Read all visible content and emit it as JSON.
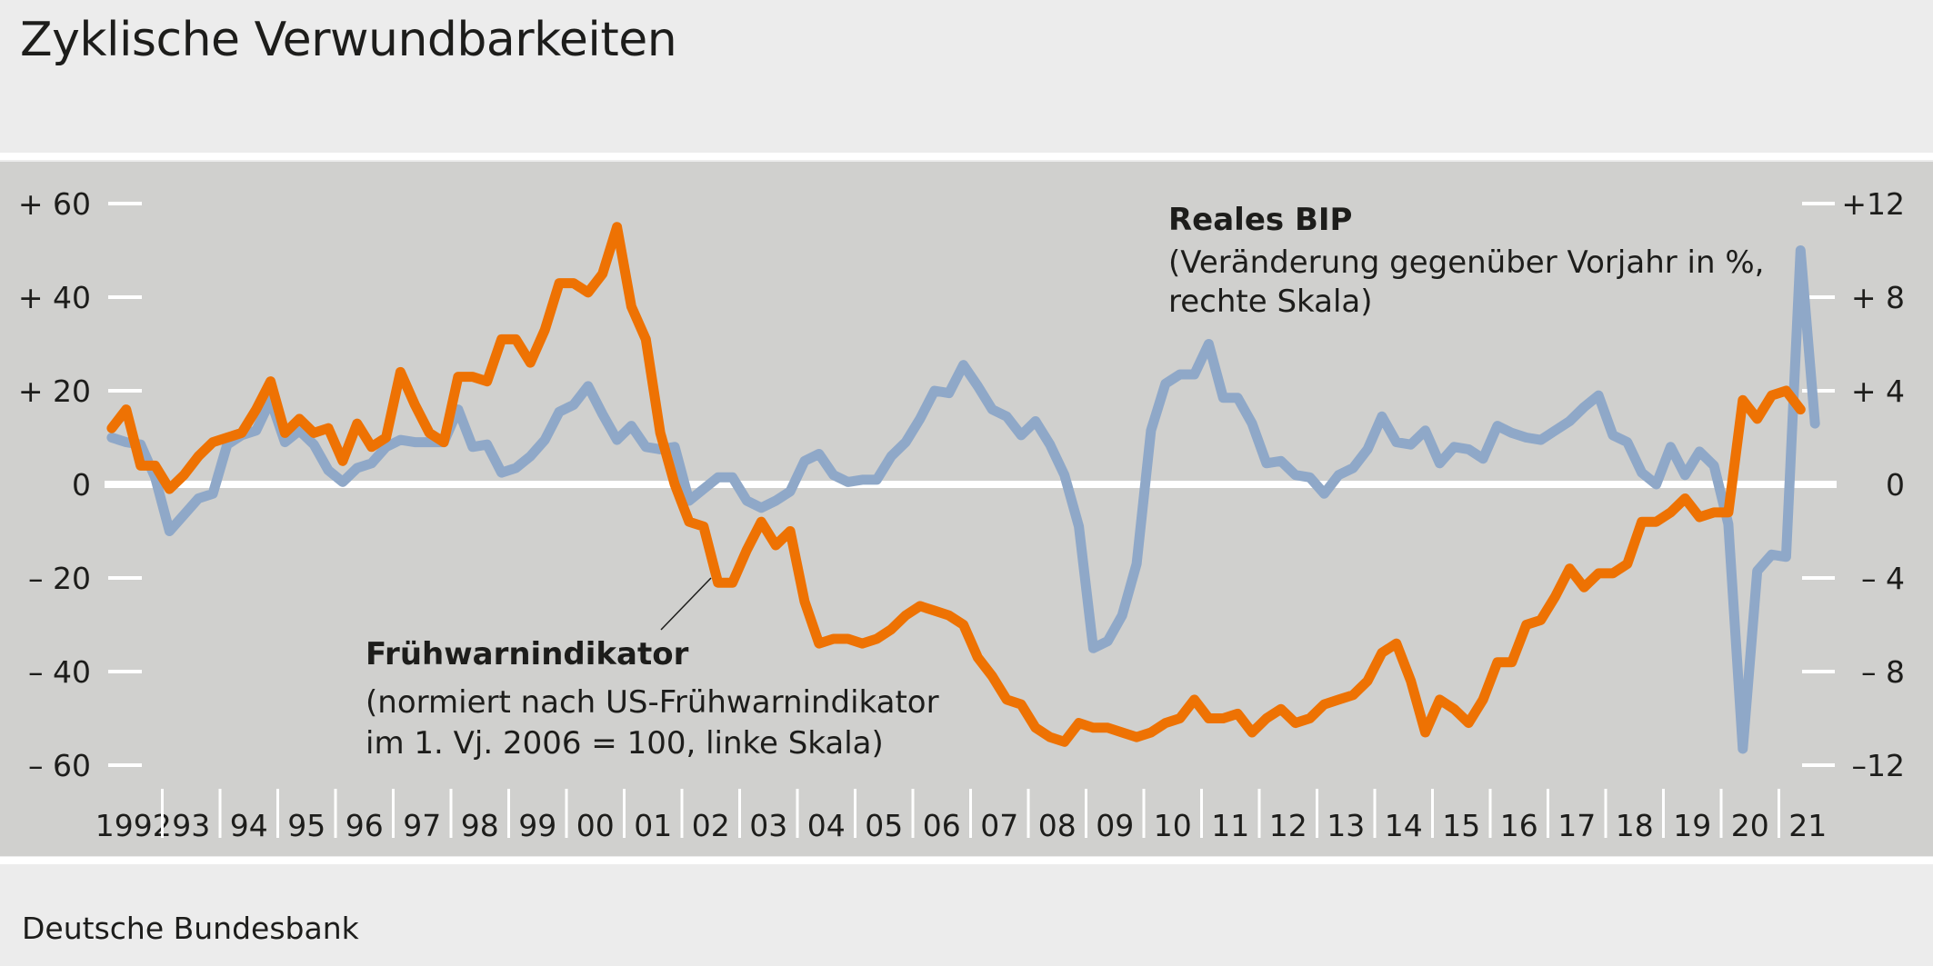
{
  "title": "Zyklische Verwundbarkeiten",
  "footer": "Deutsche Bundesbank",
  "colors": {
    "fruehwarn": "#ee7203",
    "bip": "#8fa8c8",
    "plot_bg": "#d0d0ce",
    "page_bg": "#ececec"
  },
  "chart_data": {
    "type": "line",
    "x_axis": {
      "start": "1992-Q1",
      "frequency": "quarterly",
      "tick_labels": [
        "1992",
        "93",
        "94",
        "95",
        "96",
        "97",
        "98",
        "99",
        "00",
        "01",
        "02",
        "03",
        "04",
        "05",
        "06",
        "07",
        "08",
        "09",
        "10",
        "11",
        "12",
        "13",
        "14",
        "15",
        "16",
        "17",
        "18",
        "19",
        "20",
        "21"
      ]
    },
    "left_axis": {
      "range": [
        -60,
        60
      ],
      "tick_values": [
        60,
        40,
        20,
        0,
        -20,
        -40,
        -60
      ],
      "tick_labels": [
        "+ 60",
        "+ 40",
        "+ 20",
        "0",
        "– 20",
        "– 40",
        "– 60"
      ]
    },
    "right_axis": {
      "range": [
        -12,
        12
      ],
      "tick_values": [
        12,
        8,
        4,
        0,
        -4,
        -8,
        -12
      ],
      "tick_labels": [
        "+12",
        "+ 8",
        "+ 4",
        "0",
        "– 4",
        "– 8",
        "–12"
      ]
    },
    "grid": false,
    "zero_line": true,
    "series": [
      {
        "name": "Frühwarnindikator",
        "label_lines": [
          "(normiert nach US-Frühwarnindikator",
          "im 1. Vj. 2006 = 100, linke Skala)"
        ],
        "axis": "left",
        "color": "#ee7203",
        "values": [
          12,
          16,
          4,
          4,
          -1,
          2,
          6,
          9,
          10,
          11,
          16,
          22,
          11,
          14,
          11,
          12,
          5,
          13,
          8,
          10,
          24,
          17,
          11,
          9,
          23,
          23,
          22,
          31,
          31,
          26,
          33,
          43,
          43,
          41,
          45,
          55,
          38,
          31,
          11,
          0,
          -8,
          -9,
          -21,
          -21,
          -14,
          -8,
          -13,
          -10,
          -25,
          -34,
          -33,
          -33,
          -34,
          -33,
          -31,
          -28,
          -26,
          -27,
          -28,
          -30,
          -37,
          -41,
          -46,
          -47,
          -52,
          -54,
          -55,
          -51,
          -52,
          -52,
          -53,
          -54,
          -53,
          -51,
          -50,
          -46,
          -50,
          -50,
          -49,
          -53,
          -50,
          -48,
          -51,
          -50,
          -47,
          -46,
          -45,
          -42,
          -36,
          -34,
          -42,
          -53,
          -46,
          -48,
          -51,
          -46,
          -38,
          -38,
          -30,
          -29,
          -24,
          -18,
          -22,
          -19,
          -19,
          -17,
          -8,
          -8,
          -6,
          -3,
          -7,
          -6,
          -6,
          18,
          14,
          19,
          20,
          16
        ]
      },
      {
        "name": "Reales BIP",
        "label_lines": [
          "(Veränderung gegenüber Vorjahr in %,",
          "rechte Skala)"
        ],
        "axis": "right",
        "color": "#8fa8c8",
        "values": [
          2.0,
          1.8,
          1.7,
          0.3,
          -2.0,
          -1.3,
          -0.6,
          -0.4,
          1.7,
          2.1,
          2.3,
          3.6,
          1.8,
          2.3,
          1.7,
          0.6,
          0.1,
          0.7,
          0.9,
          1.6,
          1.9,
          1.8,
          1.8,
          1.8,
          3.2,
          1.6,
          1.7,
          0.5,
          0.7,
          1.2,
          1.9,
          3.1,
          3.4,
          4.2,
          3.0,
          1.9,
          2.5,
          1.6,
          1.5,
          1.6,
          -0.7,
          -0.2,
          0.3,
          0.3,
          -0.7,
          -1.0,
          -0.7,
          -0.3,
          1.0,
          1.3,
          0.4,
          0.1,
          0.2,
          0.2,
          1.2,
          1.8,
          2.8,
          4.0,
          3.9,
          5.1,
          4.2,
          3.2,
          2.9,
          2.1,
          2.7,
          1.7,
          0.4,
          -1.8,
          -7.0,
          -6.7,
          -5.6,
          -3.4,
          2.3,
          4.3,
          4.7,
          4.7,
          6.0,
          3.7,
          3.7,
          2.6,
          0.9,
          1.0,
          0.4,
          0.3,
          -0.4,
          0.4,
          0.7,
          1.5,
          2.9,
          1.8,
          1.7,
          2.3,
          0.9,
          1.6,
          1.5,
          1.1,
          2.5,
          2.2,
          2.0,
          1.9,
          2.3,
          2.7,
          3.3,
          3.8,
          2.1,
          1.8,
          0.5,
          0.0,
          1.6,
          0.4,
          1.4,
          0.8,
          -1.7,
          -11.3,
          -3.7,
          -3.0,
          -3.1,
          10.0,
          2.6
        ]
      }
    ]
  }
}
